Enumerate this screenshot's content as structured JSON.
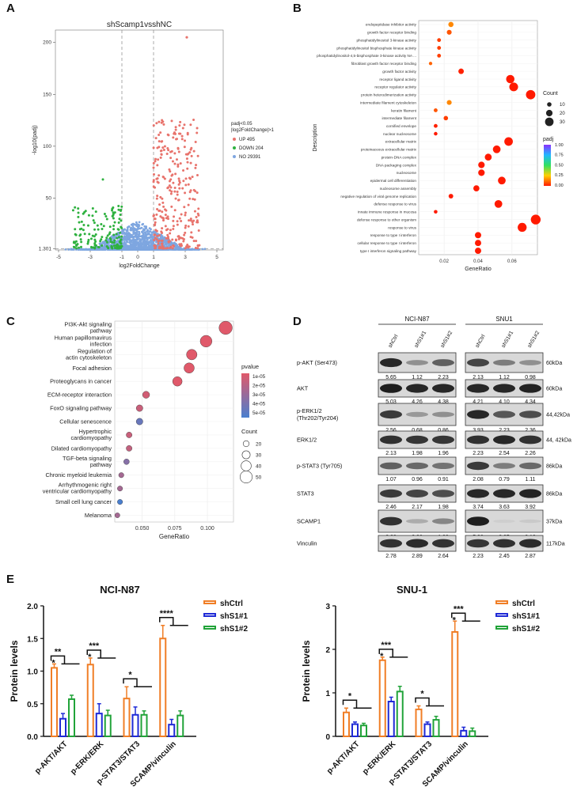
{
  "panel_labels": {
    "A": "A",
    "B": "B",
    "C": "C",
    "D": "D",
    "E": "E"
  },
  "chart_data": [
    {
      "id": "A",
      "type": "scatter",
      "title": "shScamp1vsshNC",
      "xlabel": "log2FoldChange",
      "ylabel": "-log10(padj)",
      "x_ticks": [
        "-5",
        "-3",
        "-1",
        "0",
        "1",
        "3",
        "5"
      ],
      "y_ticks": [
        "1.301",
        "50",
        "100",
        "150",
        "200"
      ],
      "xlim": [
        -5.2,
        5.4
      ],
      "ylim": [
        0,
        212
      ],
      "threshold_x": [
        -1,
        1
      ],
      "threshold_y": 1.301,
      "legend_title_lines": [
        "padj<0.05",
        "|log2FoldChange|>1"
      ],
      "legend": [
        {
          "label": "UP 495",
          "color": "#e8736c"
        },
        {
          "label": "DOWN 204",
          "color": "#2eb13f"
        },
        {
          "label": "NO 29391",
          "color": "#7ea6e0"
        }
      ],
      "series": [
        {
          "name": "UP",
          "count": 495,
          "color": "#e8736c",
          "x_range": [
            1,
            4
          ],
          "y_range": [
            1.3,
            130
          ]
        },
        {
          "name": "DOWN",
          "count": 204,
          "color": "#2eb13f",
          "x_range": [
            -4.2,
            -1
          ],
          "y_range": [
            1.3,
            70
          ]
        },
        {
          "name": "NO",
          "count": 29391,
          "color": "#7ea6e0",
          "x_range": [
            -5,
            5
          ],
          "y_range": [
            0,
            40
          ]
        }
      ],
      "outliers": [
        {
          "x": 3.1,
          "y": 205,
          "series": "UP"
        }
      ]
    },
    {
      "id": "B",
      "type": "scatter",
      "xlabel": "GeneRatio",
      "ylabel": "Description",
      "x_ticks": [
        0.02,
        0.04,
        0.06
      ],
      "xlim": [
        0.005,
        0.075
      ],
      "size_legend_title": "Count",
      "size_legend": [
        10,
        20,
        30
      ],
      "color_legend_title": "padj",
      "color_legend_ticks": [
        "1.00",
        "0.75",
        "0.50",
        "0.25",
        "0.00"
      ],
      "terms": [
        {
          "label": "endopeptidase inhibitor activity",
          "x": 0.024,
          "count": 14,
          "padj": 0.15
        },
        {
          "label": "growth factor receptor binding",
          "x": 0.023,
          "count": 12,
          "padj": 0.08
        },
        {
          "label": "phosphatidylinositol 3-kinase activity",
          "x": 0.017,
          "count": 7,
          "padj": 0.05
        },
        {
          "label": "phosphatidylinositol bisphosphate kinase activity",
          "x": 0.017,
          "count": 7,
          "padj": 0.05
        },
        {
          "label": "phosphatidylinositol-4,5-bisphosphate 3-kinase activity NA ...",
          "x": 0.017,
          "count": 7,
          "padj": 0.05
        },
        {
          "label": "fibroblast growth factor receptor binding",
          "x": 0.012,
          "count": 5,
          "padj": 0.1
        },
        {
          "label": "growth factor activity",
          "x": 0.03,
          "count": 15,
          "padj": 0.01
        },
        {
          "label": "receptor ligand activity",
          "x": 0.059,
          "count": 29,
          "padj": 0.0
        },
        {
          "label": "receptor regulator activity",
          "x": 0.061,
          "count": 31,
          "padj": 0.0
        },
        {
          "label": "protein heterodimerization activity",
          "x": 0.071,
          "count": 34,
          "padj": 0.0
        },
        {
          "label": "intermediate filament cytoskeleton",
          "x": 0.023,
          "count": 12,
          "padj": 0.15
        },
        {
          "label": "keratin filament",
          "x": 0.015,
          "count": 7,
          "padj": 0.08
        },
        {
          "label": "intermediate filament",
          "x": 0.021,
          "count": 10,
          "padj": 0.05
        },
        {
          "label": "cornified envelope",
          "x": 0.015,
          "count": 7,
          "padj": 0.01
        },
        {
          "label": "nuclear nucleosome",
          "x": 0.015,
          "count": 6,
          "padj": 0.0
        },
        {
          "label": "extracellular matrix",
          "x": 0.058,
          "count": 30,
          "padj": 0.0
        },
        {
          "label": "proteinaceous extracellular matrix",
          "x": 0.051,
          "count": 26,
          "padj": 0.0
        },
        {
          "label": "protein-DNA complex",
          "x": 0.046,
          "count": 22,
          "padj": 0.0
        },
        {
          "label": "DNA packaging complex",
          "x": 0.042,
          "count": 20,
          "padj": 0.0
        },
        {
          "label": "nucleosome",
          "x": 0.042,
          "count": 20,
          "padj": 0.0
        },
        {
          "label": "epidermal cell differentiation",
          "x": 0.054,
          "count": 26,
          "padj": 0.0
        },
        {
          "label": "nucleosome assembly",
          "x": 0.039,
          "count": 18,
          "padj": 0.0
        },
        {
          "label": "negative regulation of viral genome replication",
          "x": 0.024,
          "count": 11,
          "padj": 0.0
        },
        {
          "label": "defense response to virus",
          "x": 0.052,
          "count": 26,
          "padj": 0.0
        },
        {
          "label": "innate immune response in mucosa",
          "x": 0.015,
          "count": 6,
          "padj": 0.0
        },
        {
          "label": "defense response to other organism",
          "x": 0.074,
          "count": 36,
          "padj": 0.0
        },
        {
          "label": "response to virus",
          "x": 0.066,
          "count": 32,
          "padj": 0.0
        },
        {
          "label": "response to type I interferon",
          "x": 0.04,
          "count": 19,
          "padj": 0.0
        },
        {
          "label": "cellular response to type I interferon",
          "x": 0.04,
          "count": 19,
          "padj": 0.0
        },
        {
          "label": "type I interferon signaling pathway",
          "x": 0.04,
          "count": 19,
          "padj": 0.0
        }
      ]
    },
    {
      "id": "C",
      "type": "scatter",
      "xlabel": "GeneRatio",
      "x_ticks": [
        0.05,
        0.075,
        0.1
      ],
      "x_tick_labels": [
        "0.050",
        "0.075",
        "0.100"
      ],
      "xlim": [
        0.029,
        0.12
      ],
      "color_legend_title": "pvalue",
      "color_legend_ticks": [
        "1e-05",
        "2e-05",
        "3e-05",
        "4e-05",
        "5e-05"
      ],
      "size_legend_title": "Count",
      "size_legend": [
        20,
        30,
        40,
        50
      ],
      "terms": [
        {
          "label": "PI3K-Akt signaling pathway",
          "x": 0.114,
          "count": 55,
          "pvalue": 0.0
        },
        {
          "label": "Human papillomavirus infection",
          "x": 0.099,
          "count": 48,
          "pvalue": 0.0
        },
        {
          "label": "Regulation of actin cytoskeleton",
          "x": 0.088,
          "count": 42,
          "pvalue": 0.0
        },
        {
          "label": "Focal adhesion",
          "x": 0.086,
          "count": 41,
          "pvalue": 0.0
        },
        {
          "label": "Proteoglycans in cancer",
          "x": 0.077,
          "count": 37,
          "pvalue": 0.0
        },
        {
          "label": "ECM-receptor interaction",
          "x": 0.053,
          "count": 25,
          "pvalue": 5e-06
        },
        {
          "label": "FoxO signaling pathway",
          "x": 0.048,
          "count": 23,
          "pvalue": 8e-06
        },
        {
          "label": "Cellular senescence",
          "x": 0.048,
          "count": 23,
          "pvalue": 4e-05
        },
        {
          "label": "Hypertrophic cardiomyopathy",
          "x": 0.04,
          "count": 19,
          "pvalue": 8e-06
        },
        {
          "label": "Dilated cardiomyopathy",
          "x": 0.04,
          "count": 19,
          "pvalue": 1e-05
        },
        {
          "label": "TGF-beta signaling pathway",
          "x": 0.038,
          "count": 18,
          "pvalue": 3e-05
        },
        {
          "label": "Chronic myeloid leukemia",
          "x": 0.034,
          "count": 16,
          "pvalue": 2e-05
        },
        {
          "label": "Arrhythmogenic right ventricular cardiomyopathy",
          "x": 0.033,
          "count": 16,
          "pvalue": 2e-05
        },
        {
          "label": "Small cell lung cancer",
          "x": 0.033,
          "count": 16,
          "pvalue": 5e-05
        },
        {
          "label": "Melanoma",
          "x": 0.031,
          "count": 15,
          "pvalue": 2e-05
        }
      ]
    },
    {
      "id": "E1",
      "type": "bar",
      "title": "NCI-N87",
      "ylabel": "Protein levels",
      "categories": [
        "p-AKT/AKT",
        "p-ERK/ERK",
        "p-STAT3/STAT3",
        "SCAMP/vinculin"
      ],
      "y_ticks": [
        "0.0",
        "0.5",
        "1.0",
        "1.5",
        "2.0"
      ],
      "ylim": [
        0,
        2.0
      ],
      "series": [
        {
          "name": "shCtrl",
          "color": "#f07e26",
          "values": [
            1.05,
            1.1,
            0.58,
            1.5
          ],
          "errors": [
            0.06,
            0.1,
            0.18,
            0.2
          ]
        },
        {
          "name": "shS1#1",
          "color": "#1f2ad6",
          "values": [
            0.27,
            0.35,
            0.33,
            0.18
          ],
          "errors": [
            0.08,
            0.15,
            0.12,
            0.08
          ]
        },
        {
          "name": "shS1#2",
          "color": "#21a339",
          "values": [
            0.57,
            0.32,
            0.33,
            0.32
          ],
          "errors": [
            0.06,
            0.08,
            0.06,
            0.07
          ]
        }
      ],
      "significance_outer": [
        "**",
        "***",
        "*",
        "****"
      ],
      "significance_inner": [
        "*",
        "*",
        "",
        ""
      ]
    },
    {
      "id": "E2",
      "type": "bar",
      "title": "SNU-1",
      "ylabel": "Protein levels",
      "categories": [
        "p-AKT/AKT",
        "p-ERK/ERK",
        "p-STAT3/STAT3",
        "SCAMP/vinculin"
      ],
      "y_ticks": [
        "0",
        "1",
        "2",
        "3"
      ],
      "ylim": [
        0,
        3.0
      ],
      "series": [
        {
          "name": "shCtrl",
          "color": "#f07e26",
          "values": [
            0.55,
            1.75,
            0.62,
            2.4
          ],
          "errors": [
            0.1,
            0.07,
            0.08,
            0.25
          ]
        },
        {
          "name": "shS1#1",
          "color": "#1f2ad6",
          "values": [
            0.28,
            0.8,
            0.28,
            0.13
          ],
          "errors": [
            0.05,
            0.1,
            0.05,
            0.08
          ]
        },
        {
          "name": "shS1#2",
          "color": "#21a339",
          "values": [
            0.25,
            1.03,
            0.38,
            0.12
          ],
          "errors": [
            0.05,
            0.12,
            0.08,
            0.07
          ]
        }
      ],
      "significance_outer": [
        "*",
        "***",
        "*",
        "***"
      ],
      "significance_inner": [
        "",
        "*",
        "",
        "*"
      ]
    }
  ],
  "blots": {
    "groups": [
      {
        "name": "NCI-N87",
        "lanes": [
          "shCtrl",
          "shS1#1",
          "shS1#2"
        ]
      },
      {
        "name": "SNU1",
        "lanes": [
          "shCtrl",
          "shS1#1",
          "shS1#2"
        ]
      }
    ],
    "rows": [
      {
        "name": "p-AKT (Ser473)",
        "size": "60kDa",
        "n87": [
          "5.65",
          "1.12",
          "2.23"
        ],
        "snu": [
          "2.13",
          "1.12",
          "0.98"
        ],
        "n87_int": [
          0.9,
          0.35,
          0.6
        ],
        "snu_int": [
          0.75,
          0.45,
          0.35
        ]
      },
      {
        "name": "AKT",
        "size": "60kDa",
        "n87": [
          "5.03",
          "4.26",
          "4.38"
        ],
        "snu": [
          "4.21",
          "4.10",
          "4.34"
        ],
        "n87_int": [
          0.95,
          0.9,
          0.9
        ],
        "snu_int": [
          0.9,
          0.9,
          0.92
        ]
      },
      {
        "name": "p-ERK1/2 (Thr202/Tyr204)",
        "size": "44,42kDa",
        "n87": [
          "2.56",
          "0.68",
          "0.86"
        ],
        "snu": [
          "3.93",
          "2.23",
          "2.36"
        ],
        "n87_int": [
          0.8,
          0.3,
          0.35
        ],
        "snu_int": [
          0.9,
          0.65,
          0.7
        ]
      },
      {
        "name": "ERK1/2",
        "size": "44, 42kDa",
        "n87": [
          "2.13",
          "1.98",
          "1.96"
        ],
        "snu": [
          "2.23",
          "2.54",
          "2.26"
        ],
        "n87_int": [
          0.85,
          0.82,
          0.82
        ],
        "snu_int": [
          0.85,
          0.9,
          0.85
        ]
      },
      {
        "name": "p-STAT3 (Tyr705)",
        "size": "86kDa",
        "n87": [
          "1.07",
          "0.96",
          "0.91"
        ],
        "snu": [
          "2.08",
          "0.79",
          "1.11"
        ],
        "n87_int": [
          0.6,
          0.55,
          0.5
        ],
        "snu_int": [
          0.8,
          0.45,
          0.55
        ]
      },
      {
        "name": "STAT3",
        "size": "86kDa",
        "n87": [
          "2.46",
          "2.17",
          "1.98"
        ],
        "snu": [
          "3.74",
          "3.63",
          "3.92"
        ],
        "n87_int": [
          0.8,
          0.75,
          0.7
        ],
        "snu_int": [
          0.9,
          0.9,
          0.92
        ]
      },
      {
        "name": "SCAMP1",
        "size": "37kDa",
        "n87": [
          "3.83",
          "0.36",
          "1.02"
        ],
        "snu": [
          "5.98",
          "0.05",
          "0.10"
        ],
        "n87_int": [
          0.85,
          0.2,
          0.4
        ],
        "snu_int": [
          0.95,
          0.02,
          0.05
        ]
      },
      {
        "name": "Vinculin",
        "size": "117kDa",
        "n87": [
          "2.78",
          "2.89",
          "2.64"
        ],
        "snu": [
          "2.23",
          "2.45",
          "2.87"
        ],
        "n87_int": [
          0.85,
          0.88,
          0.84
        ],
        "snu_int": [
          0.82,
          0.85,
          0.88
        ]
      }
    ]
  }
}
